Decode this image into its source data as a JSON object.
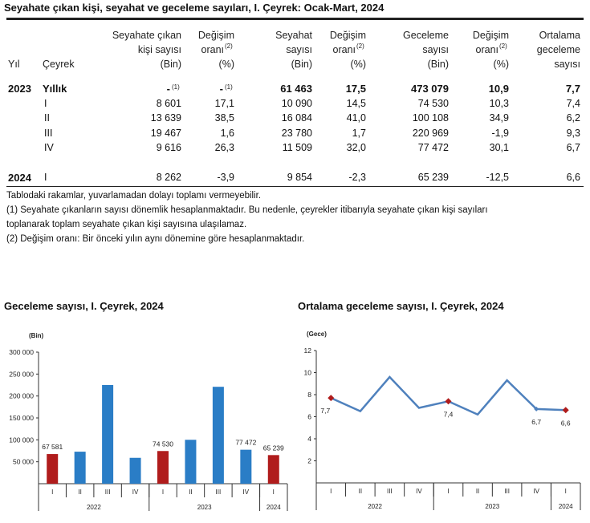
{
  "table": {
    "title": "Seyahate çıkan kişi, seyahat ve geceleme sayıları, I. Çeyrek: Ocak-Mart, 2024",
    "headers": {
      "yil": "Yıl",
      "ceyrek": "Çeyrek",
      "c1": [
        "Seyahate çıkan",
        "kişi sayısı",
        "(Bin)"
      ],
      "c2": [
        "Değişim",
        "oranı",
        "(%)"
      ],
      "c3": [
        "Seyahat",
        "sayısı",
        "(Bin)"
      ],
      "c4": [
        "Değişim",
        "oranı",
        "(%)"
      ],
      "c5": [
        "Geceleme",
        "sayısı",
        "(Bin)"
      ],
      "c6": [
        "Değişim",
        "oranı",
        "(%)"
      ],
      "c7": [
        "Ortalama",
        "geceleme",
        "sayısı"
      ],
      "sup2": "(2)",
      "sup1": "(1)"
    },
    "rows": [
      {
        "year": "2023",
        "q": "Yıllık",
        "v": [
          "-",
          "-",
          "61 463",
          "17,5",
          "473 079",
          "10,9",
          "7,7"
        ],
        "bold": true
      },
      {
        "year": "",
        "q": "I",
        "v": [
          "8 601",
          "17,1",
          "10 090",
          "14,5",
          "74 530",
          "10,3",
          "7,4"
        ]
      },
      {
        "year": "",
        "q": "II",
        "v": [
          "13 639",
          "38,5",
          "16 084",
          "41,0",
          "100 108",
          "34,9",
          "6,2"
        ]
      },
      {
        "year": "",
        "q": "III",
        "v": [
          "19 467",
          "1,6",
          "23 780",
          "1,7",
          "220 969",
          "-1,9",
          "9,3"
        ]
      },
      {
        "year": "",
        "q": "IV",
        "v": [
          "9 616",
          "26,3",
          "11 509",
          "32,0",
          "77 472",
          "30,1",
          "6,7"
        ]
      },
      {
        "year": "2024",
        "q": "I",
        "v": [
          "8 262",
          "-3,9",
          "9 854",
          "-2,3",
          "65 239",
          "-12,5",
          "6,6"
        ]
      }
    ],
    "notes": [
      "Tablodaki rakamlar, yuvarlamadan dolayı toplamı vermeyebilir.",
      "(1) Seyahate çıkanların sayısı dönemlik hesaplanmaktadır. Bu nedenle, çeyrekler itibarıyla seyahate çıkan kişi sayıları",
      "toplanarak toplam seyahate çıkan kişi sayısına ulaşılamaz.",
      "(2) Değişim oranı: Bir önceki yılın aynı dönemine göre hesaplanmaktadır."
    ]
  },
  "chart_data": [
    {
      "type": "bar",
      "title": "Geceleme sayısı, I. Çeyrek, 2024",
      "ylabel": "(Bin)",
      "categories": [
        "I",
        "II",
        "III",
        "IV",
        "I",
        "II",
        "III",
        "IV",
        "I"
      ],
      "groups": [
        {
          "label": "2022",
          "span": 4
        },
        {
          "label": "2023",
          "span": 4
        },
        {
          "label": "2024",
          "span": 1
        }
      ],
      "values": [
        67581,
        73000,
        225000,
        59000,
        74530,
        100108,
        220969,
        77472,
        65239
      ],
      "data_labels": [
        "67 581",
        "",
        "",
        "",
        "74 530",
        "",
        "",
        "77 472",
        "65 239"
      ],
      "highlight": [
        true,
        false,
        false,
        false,
        true,
        false,
        false,
        false,
        true
      ],
      "ylim": [
        0,
        300000
      ],
      "yticks": [
        50000,
        100000,
        150000,
        200000,
        250000,
        300000
      ],
      "ytick_labels": [
        "50 000",
        "100 000",
        "150 000",
        "200 000",
        "250 000",
        "300 000"
      ],
      "colors": {
        "default": "#2a7dc6",
        "highlight": "#b01c1c"
      },
      "grid": false
    },
    {
      "type": "line",
      "title": "Ortalama geceleme sayısı, I. Çeyrek, 2024",
      "ylabel": "(Gece)",
      "categories": [
        "I",
        "II",
        "III",
        "IV",
        "I",
        "II",
        "III",
        "IV",
        "I"
      ],
      "groups": [
        {
          "label": "2022",
          "span": 4
        },
        {
          "label": "2023",
          "span": 4
        },
        {
          "label": "2024",
          "span": 1
        }
      ],
      "values": [
        7.7,
        6.5,
        9.6,
        6.8,
        7.4,
        6.2,
        9.3,
        6.7,
        6.6
      ],
      "data_labels": [
        "7,7",
        "",
        "",
        "",
        "7,4",
        "",
        "",
        "6,7",
        "6,6"
      ],
      "highlight": [
        true,
        false,
        false,
        false,
        true,
        false,
        false,
        false,
        true
      ],
      "ylim": [
        0,
        12
      ],
      "yticks": [
        2,
        4,
        6,
        8,
        10,
        12
      ],
      "ytick_labels": [
        "2",
        "4",
        "6",
        "8",
        "10",
        "12"
      ],
      "colors": {
        "line": "#4f81bd",
        "highlight": "#b01c1c"
      },
      "grid": false
    }
  ]
}
